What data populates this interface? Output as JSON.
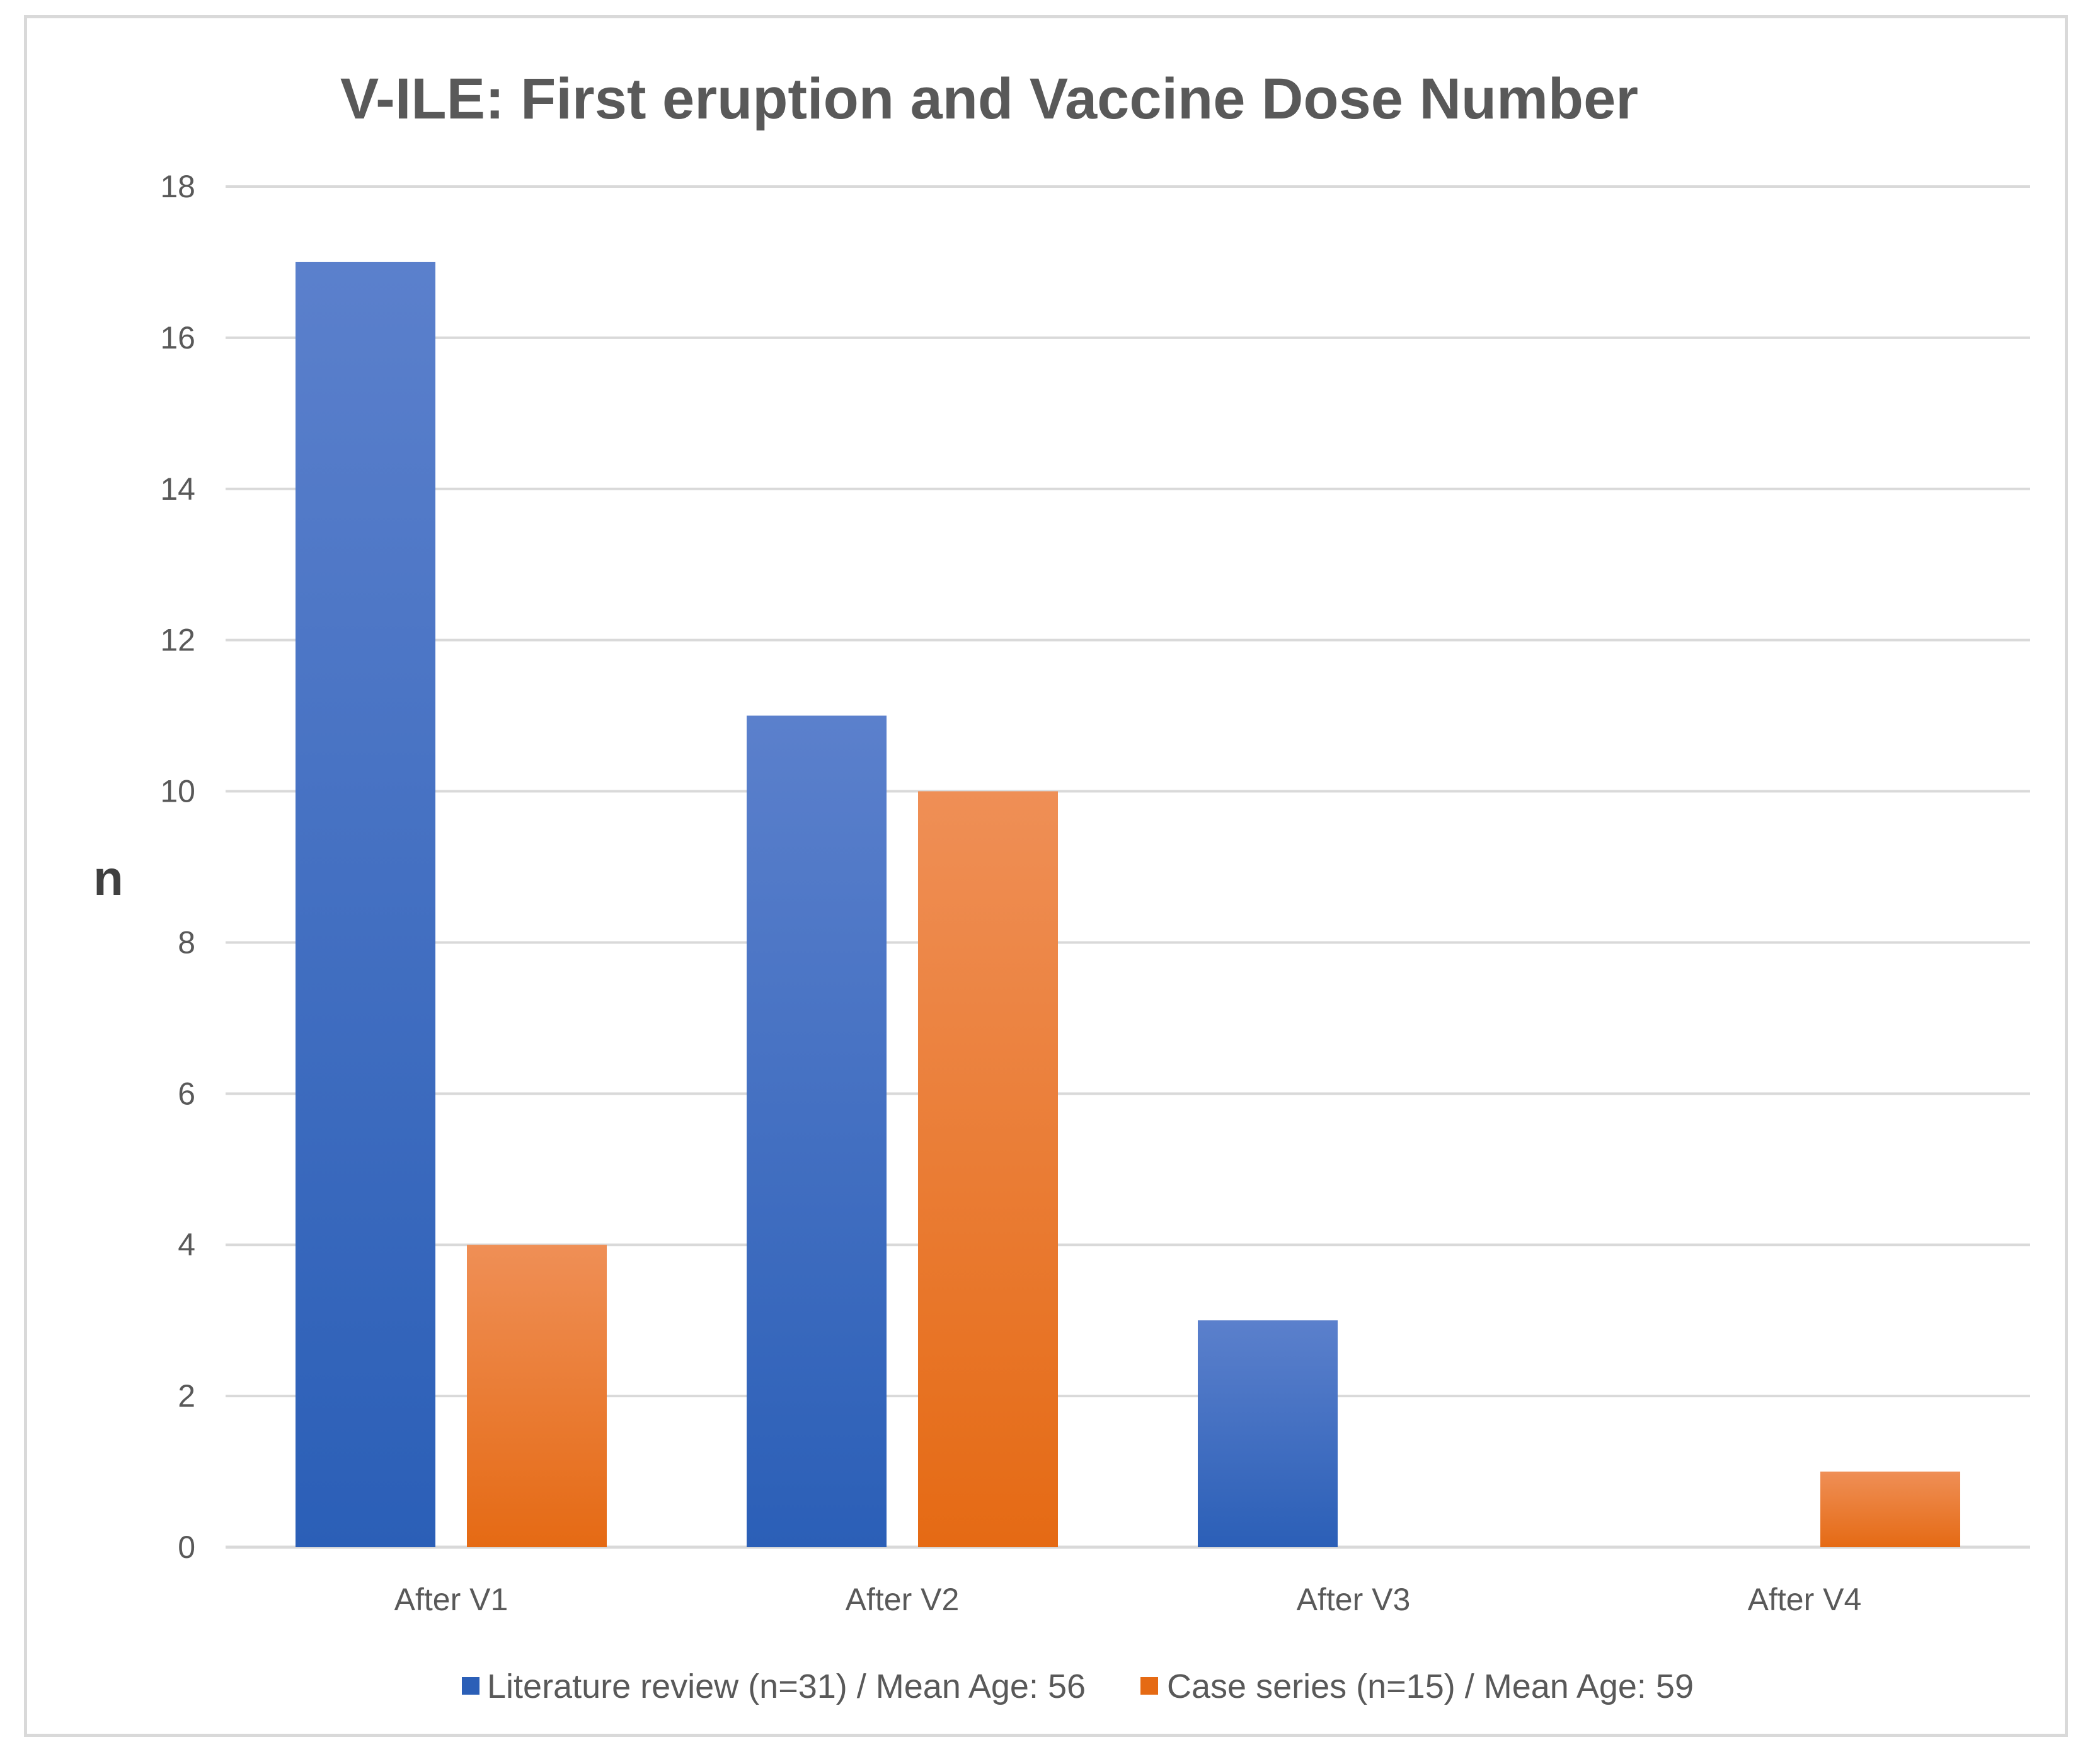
{
  "chart_data": {
    "type": "bar",
    "title": "V-ILE: First eruption and Vaccine Dose Number",
    "xlabel": "",
    "ylabel": "n",
    "ylim": [
      0,
      18
    ],
    "yticks": [
      0,
      2,
      4,
      6,
      8,
      10,
      12,
      14,
      16,
      18
    ],
    "grid": true,
    "legend_position": "bottom",
    "categories": [
      "After V1",
      "After V2",
      "After V3",
      "After V4"
    ],
    "series": [
      {
        "name": "Literature review (n=31) / Mean Age: 56",
        "values": [
          17,
          11,
          3,
          0
        ],
        "color_top": "#5b80cc",
        "color_bottom": "#2b5fb7"
      },
      {
        "name": "Case series (n=15) / Mean Age: 59",
        "values": [
          4,
          10,
          0,
          1
        ],
        "color_top": "#ef8f56",
        "color_bottom": "#e56a14"
      }
    ]
  }
}
